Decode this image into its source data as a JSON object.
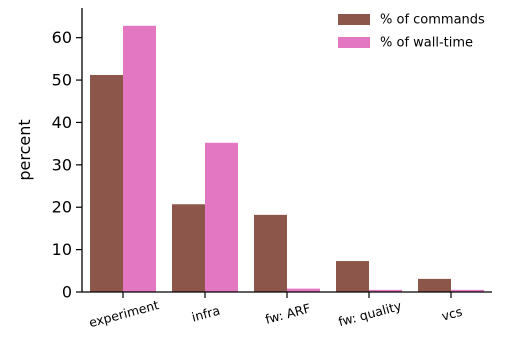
{
  "chart_data": {
    "type": "bar",
    "title": "",
    "xlabel": "",
    "ylabel": "percent",
    "ylim": [
      0,
      67
    ],
    "yticks": [
      0,
      10,
      20,
      30,
      40,
      50,
      60
    ],
    "categories": [
      "experiment",
      "infra",
      "fw: ARF",
      "fw: quality",
      "vcs"
    ],
    "series": [
      {
        "name": "% of commands",
        "color": "#8c564b",
        "values": [
          51.2,
          20.7,
          18.2,
          7.3,
          3.1
        ]
      },
      {
        "name": "% of wall-time",
        "color": "#e377c2",
        "values": [
          62.8,
          35.2,
          0.8,
          0.5,
          0.5
        ]
      }
    ],
    "legend": {
      "position": "top-right"
    },
    "grid": false
  }
}
